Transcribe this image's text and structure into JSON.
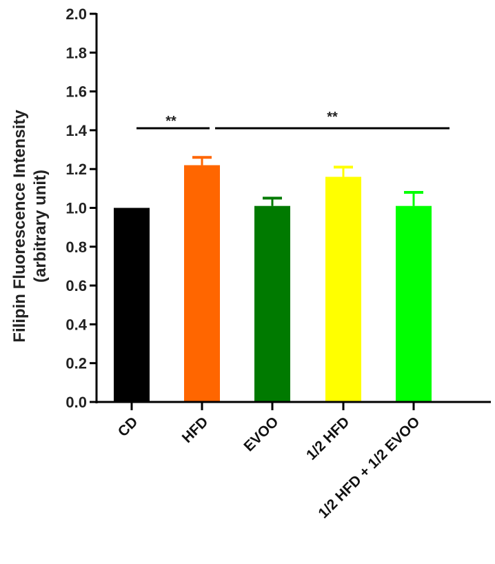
{
  "chart_data": {
    "type": "bar",
    "title": "",
    "xlabel": "",
    "ylabel": "Filipin Fluorescence Intensity",
    "ylabel_line2": "(arbitrary unit)",
    "ylim": [
      0,
      2.0
    ],
    "yticks": [
      "0.0",
      "0.2",
      "0.4",
      "0.6",
      "0.8",
      "1.0",
      "1.2",
      "1.4",
      "1.6",
      "1.8",
      "2.0"
    ],
    "grid": false,
    "legend": null,
    "categories": [
      "CD",
      "HFD",
      "EVOO",
      "1/2 HFD",
      "1/2 HFD + 1/2 EVOO"
    ],
    "values": [
      1.0,
      1.22,
      1.01,
      1.16,
      1.01
    ],
    "error_upper": [
      0.0,
      0.04,
      0.04,
      0.05,
      0.07
    ],
    "colors": [
      "#000000",
      "#ff6600",
      "#007a00",
      "#ffff00",
      "#00ff00"
    ],
    "annotations": [
      {
        "text": "**",
        "from": "CD",
        "to": "HFD"
      },
      {
        "text": "**",
        "from": "HFD",
        "to": "1/2 HFD + 1/2 EVOO"
      }
    ]
  }
}
